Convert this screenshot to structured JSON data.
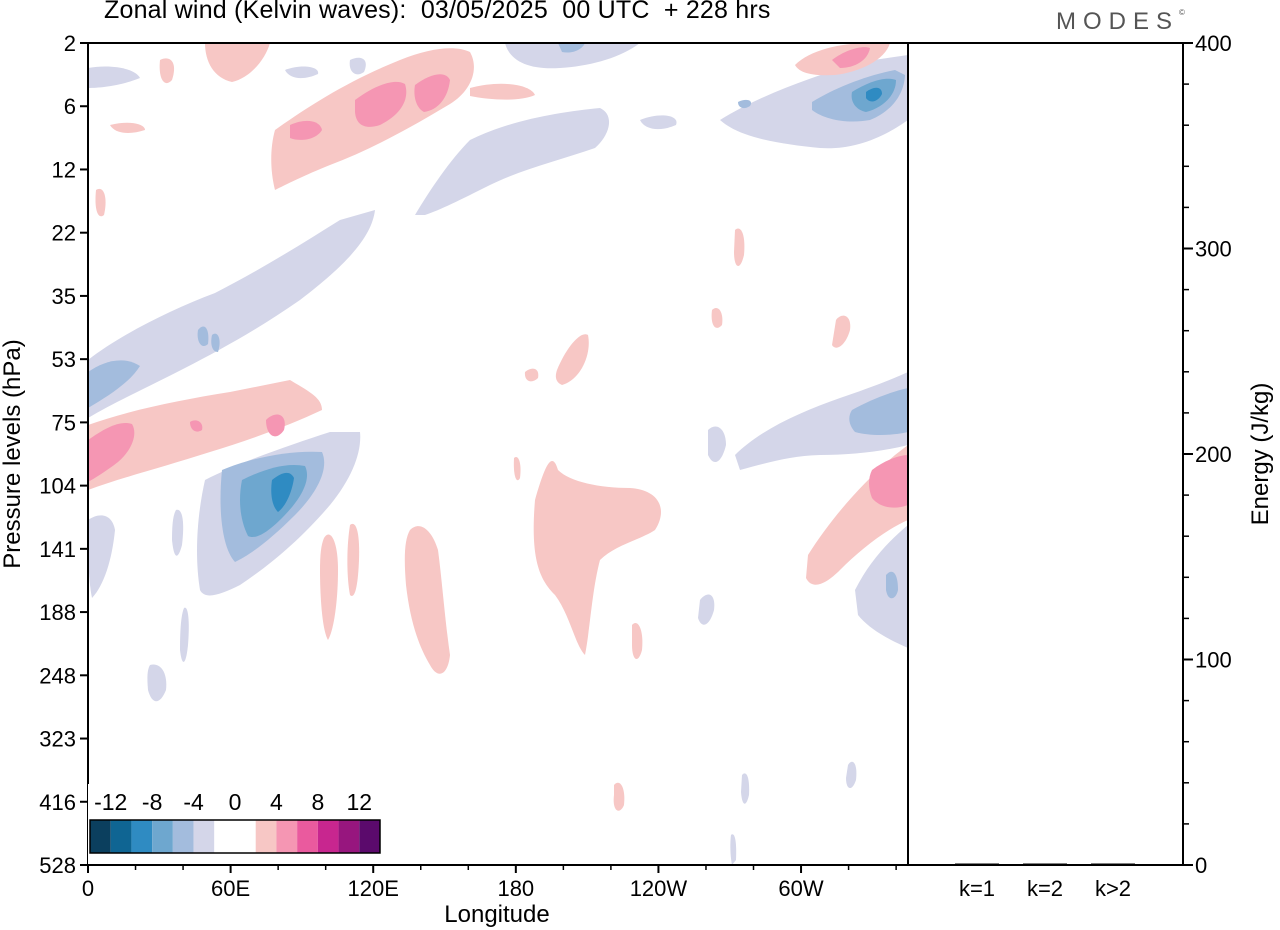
{
  "header": {
    "title": "Zonal wind (Kelvin waves):  03/05/2025  00 UTC  + 228 hrs",
    "brand": "MODES",
    "brand_mark": "©"
  },
  "chart_data": [
    {
      "type": "heatmap",
      "description_of_fields": "Hovmoller-style longitude–pressure section of Kelvin-wave zonal wind; shaded contours at 2 m/s intervals",
      "xlabel": "Longitude",
      "ylabel": "Pressure levels (hPa)",
      "x_ticks": [
        "0",
        "60E",
        "120E",
        "180",
        "120W",
        "60W"
      ],
      "x_tick_values_deg_east": [
        0,
        60,
        120,
        180,
        240,
        300
      ],
      "xlim": [
        0,
        345
      ],
      "y_ticks": [
        "2",
        "6",
        "12",
        "22",
        "35",
        "53",
        "75",
        "104",
        "141",
        "188",
        "248",
        "323",
        "416",
        "528"
      ],
      "y_scale": "log",
      "colorbar": {
        "labels": [
          "-12",
          "-8",
          "-4",
          "0",
          "4",
          "8",
          "12"
        ],
        "label_values": [
          -12,
          -8,
          -4,
          0,
          4,
          8,
          12
        ],
        "colors": [
          "#0b3f5e",
          "#0f6593",
          "#2f8bc2",
          "#6ea7cf",
          "#a3bcdd",
          "#d4d6e9",
          "#ffffff",
          "#ffffff",
          "#f7c7c5",
          "#f596b3",
          "#ea5a9e",
          "#c8268f",
          "#97167e",
          "#5b0a6c"
        ],
        "placement": "bottom-left inside plot"
      },
      "features": [
        {
          "sign": "negative",
          "peak": -10,
          "lon_range": [
            50,
            100
          ],
          "p_range": [
            90,
            150
          ]
        },
        {
          "sign": "positive",
          "peak": 8,
          "lon_range": [
            0,
            100
          ],
          "p_range": [
            60,
            110
          ]
        },
        {
          "sign": "negative",
          "peak": -6,
          "lon_range": [
            0,
            120
          ],
          "p_range": [
            22,
            75
          ]
        },
        {
          "sign": "positive",
          "peak": 6,
          "lon_range": [
            80,
            190
          ],
          "p_range": [
            2,
            12
          ]
        },
        {
          "sign": "negative",
          "peak": -4,
          "lon_range": [
            140,
            230
          ],
          "p_range": [
            6,
            18
          ]
        },
        {
          "sign": "positive",
          "peak": 4,
          "lon_range": [
            190,
            240
          ],
          "p_range": [
            95,
            248
          ]
        },
        {
          "sign": "positive",
          "peak": 4,
          "lon_range": [
            100,
            150
          ],
          "p_range": [
            120,
            248
          ]
        },
        {
          "sign": "negative",
          "peak": -8,
          "lon_range": [
            300,
            345
          ],
          "p_range": [
            3,
            8
          ]
        },
        {
          "sign": "positive",
          "peak": 6,
          "lon_range": [
            300,
            345
          ],
          "p_range": [
            2,
            4
          ]
        },
        {
          "sign": "negative",
          "peak": -6,
          "lon_range": [
            255,
            345
          ],
          "p_range": [
            55,
            110
          ]
        },
        {
          "sign": "positive",
          "peak": 8,
          "lon_range": [
            305,
            345
          ],
          "p_range": [
            90,
            150
          ]
        },
        {
          "sign": "negative",
          "peak": -4,
          "lon_range": [
            325,
            345
          ],
          "p_range": [
            140,
            230
          ]
        }
      ]
    },
    {
      "type": "bar",
      "categories": [
        "k=1",
        "k=2",
        "k>2"
      ],
      "values": [
        0.5,
        0.2,
        0.3
      ],
      "ylabel": "Energy (J/kg)",
      "ylim": [
        0,
        400
      ],
      "y_ticks": [
        "0",
        "100",
        "200",
        "300",
        "400"
      ],
      "y_tick_values": [
        0,
        100,
        200,
        300,
        400
      ],
      "axis_side": "right"
    }
  ]
}
